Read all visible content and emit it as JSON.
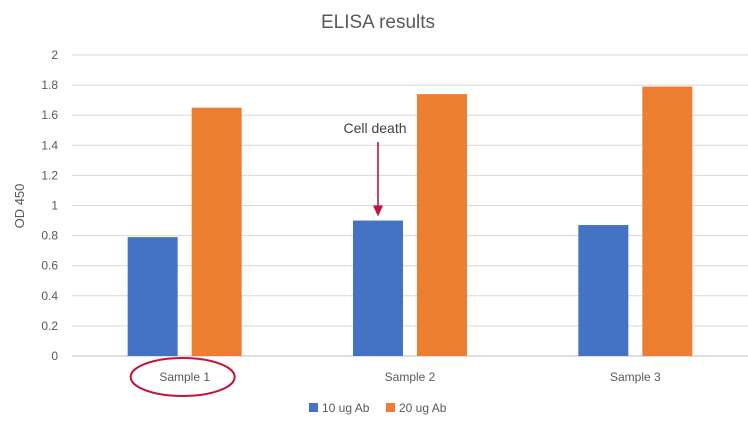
{
  "chart_data": {
    "type": "bar",
    "title": "ELISA results",
    "ylabel": "OD 450",
    "xlabel": "",
    "categories": [
      "Sample 1",
      "Sample 2",
      "Sample 3"
    ],
    "series": [
      {
        "name": "10 ug Ab",
        "values": [
          0.79,
          0.9,
          0.87
        ],
        "color": "#4472C4"
      },
      {
        "name": "20 ug Ab",
        "values": [
          1.65,
          1.74,
          1.79
        ],
        "color": "#ED7D31"
      }
    ],
    "ylim": [
      0,
      2
    ],
    "yticks": [
      "0",
      "0.2",
      "0.4",
      "0.6",
      "0.8",
      "1",
      "1.2",
      "1.4",
      "1.6",
      "1.8",
      "2"
    ],
    "grid": true,
    "legend": "bottom",
    "annotations": [
      {
        "text": "Cell death",
        "category": "Sample 2",
        "series": "10 ug Ab",
        "type": "arrow",
        "color": "#C0143C"
      },
      {
        "category": "Sample 1",
        "type": "circle-around-label",
        "color": "#C0143C"
      }
    ]
  }
}
